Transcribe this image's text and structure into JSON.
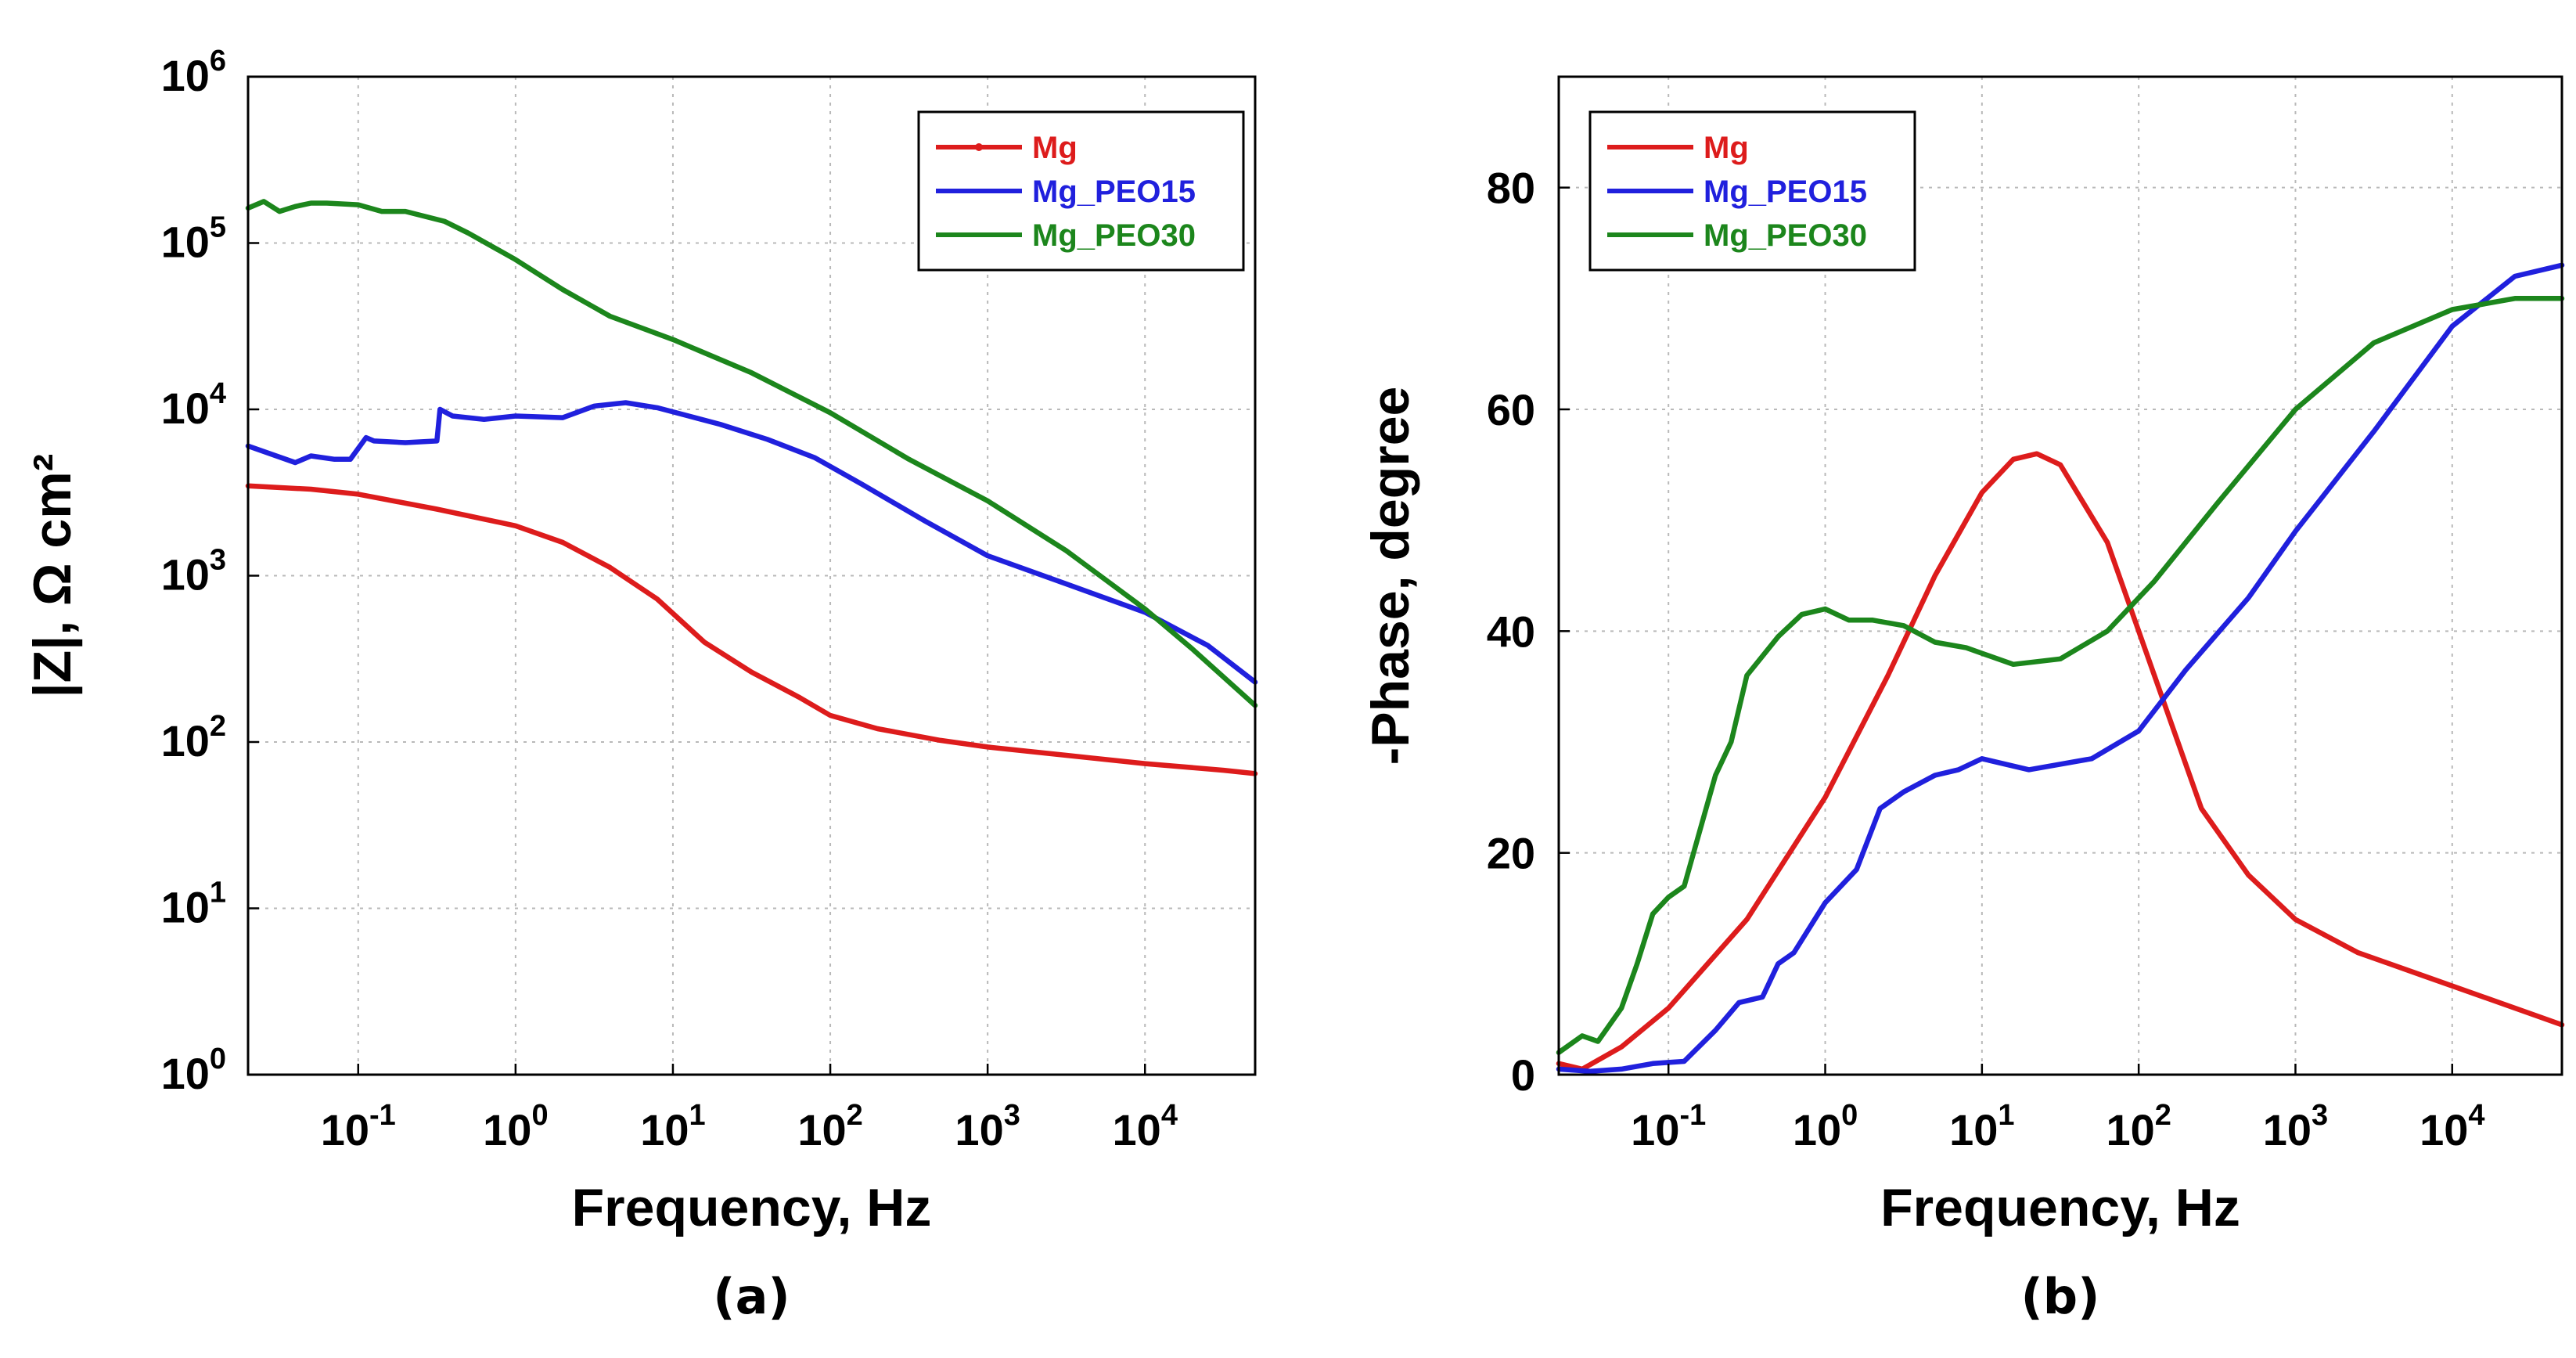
{
  "chart_data": [
    {
      "type": "line",
      "panel_label": "(a)",
      "xlabel": "Frequency, Hz",
      "ylabel": "|Z|, Ω cm²",
      "xscale": "log",
      "yscale": "log",
      "xlim_log10": [
        -1.7,
        4.7
      ],
      "ylim_log10": [
        0,
        6
      ],
      "x_ticks": [
        {
          "mant": "10",
          "exp": "-1",
          "value": -1
        },
        {
          "mant": "10",
          "exp": "0",
          "value": 0
        },
        {
          "mant": "10",
          "exp": "1",
          "value": 1
        },
        {
          "mant": "10",
          "exp": "2",
          "value": 2
        },
        {
          "mant": "10",
          "exp": "3",
          "value": 3
        },
        {
          "mant": "10",
          "exp": "4",
          "value": 4
        }
      ],
      "y_ticks": [
        {
          "mant": "10",
          "exp": "0",
          "value": 0
        },
        {
          "mant": "10",
          "exp": "1",
          "value": 1
        },
        {
          "mant": "10",
          "exp": "2",
          "value": 2
        },
        {
          "mant": "10",
          "exp": "3",
          "value": 3
        },
        {
          "mant": "10",
          "exp": "4",
          "value": 4
        },
        {
          "mant": "10",
          "exp": "5",
          "value": 5
        },
        {
          "mant": "10",
          "exp": "6",
          "value": 6
        }
      ],
      "legend_position": "top-right",
      "series": [
        {
          "name": "Mg",
          "color": "#dd1c1c",
          "marker": "dot",
          "log10x": [
            -1.7,
            -1.3,
            -1.0,
            -0.5,
            0.0,
            0.3,
            0.6,
            0.9,
            1.2,
            1.5,
            1.8,
            2.0,
            2.3,
            2.7,
            3.0,
            3.5,
            4.0,
            4.5,
            4.7
          ],
          "log10y": [
            3.54,
            3.52,
            3.49,
            3.4,
            3.3,
            3.2,
            3.05,
            2.86,
            2.6,
            2.42,
            2.27,
            2.16,
            2.08,
            2.01,
            1.97,
            1.92,
            1.87,
            1.83,
            1.81
          ]
        },
        {
          "name": "Mg_PEO15",
          "color": "#2020dd",
          "log10x": [
            -1.7,
            -1.4,
            -1.3,
            -1.15,
            -1.05,
            -0.95,
            -0.9,
            -0.7,
            -0.5,
            -0.48,
            -0.4,
            -0.2,
            0.0,
            0.3,
            0.5,
            0.7,
            0.9,
            1.1,
            1.3,
            1.6,
            1.9,
            2.2,
            2.6,
            3.0,
            3.5,
            4.0,
            4.4,
            4.7
          ],
          "log10y": [
            3.78,
            3.68,
            3.72,
            3.7,
            3.7,
            3.83,
            3.81,
            3.8,
            3.81,
            4.0,
            3.96,
            3.94,
            3.96,
            3.95,
            4.02,
            4.04,
            4.01,
            3.96,
            3.91,
            3.82,
            3.71,
            3.55,
            3.33,
            3.12,
            2.95,
            2.78,
            2.58,
            2.36
          ]
        },
        {
          "name": "Mg_PEO30",
          "color": "#1c861c",
          "log10x": [
            -1.7,
            -1.6,
            -1.5,
            -1.4,
            -1.3,
            -1.2,
            -1.0,
            -0.85,
            -0.7,
            -0.45,
            -0.3,
            0.0,
            0.3,
            0.6,
            1.0,
            1.5,
            2.0,
            2.5,
            3.0,
            3.5,
            4.0,
            4.3,
            4.7
          ],
          "log10y": [
            5.21,
            5.25,
            5.19,
            5.22,
            5.24,
            5.24,
            5.23,
            5.19,
            5.19,
            5.13,
            5.06,
            4.9,
            4.72,
            4.56,
            4.42,
            4.22,
            3.98,
            3.7,
            3.45,
            3.15,
            2.8,
            2.56,
            2.22
          ]
        }
      ]
    },
    {
      "type": "line",
      "panel_label": "(b)",
      "xlabel": "Frequency, Hz",
      "ylabel": "-Phase, degree",
      "xscale": "log",
      "yscale": "linear",
      "xlim_log10": [
        -1.7,
        4.7
      ],
      "ylim": [
        0,
        90
      ],
      "x_ticks": [
        {
          "mant": "10",
          "exp": "-1",
          "value": -1
        },
        {
          "mant": "10",
          "exp": "0",
          "value": 0
        },
        {
          "mant": "10",
          "exp": "1",
          "value": 1
        },
        {
          "mant": "10",
          "exp": "2",
          "value": 2
        },
        {
          "mant": "10",
          "exp": "3",
          "value": 3
        },
        {
          "mant": "10",
          "exp": "4",
          "value": 4
        }
      ],
      "y_ticks": [
        {
          "label": "0",
          "value": 0
        },
        {
          "label": "20",
          "value": 20
        },
        {
          "label": "40",
          "value": 40
        },
        {
          "label": "60",
          "value": 60
        },
        {
          "label": "80",
          "value": 80
        }
      ],
      "legend_position": "top-left",
      "series": [
        {
          "name": "Mg",
          "color": "#dd1c1c",
          "log10x": [
            -1.7,
            -1.55,
            -1.3,
            -1.0,
            -0.5,
            0.0,
            0.4,
            0.7,
            1.0,
            1.2,
            1.35,
            1.5,
            1.8,
            2.1,
            2.4,
            2.7,
            3.0,
            3.4,
            3.8,
            4.2,
            4.5,
            4.7
          ],
          "y": [
            1.0,
            0.5,
            2.5,
            6.0,
            14.0,
            25.0,
            36.0,
            45.0,
            52.5,
            55.5,
            56.0,
            55.0,
            48.0,
            36.0,
            24.0,
            18.0,
            14.0,
            11.0,
            9.0,
            7.0,
            5.5,
            4.5
          ]
        },
        {
          "name": "Mg_PEO15",
          "color": "#2020dd",
          "log10x": [
            -1.7,
            -1.5,
            -1.3,
            -1.1,
            -0.9,
            -0.7,
            -0.55,
            -0.4,
            -0.3,
            -0.2,
            0.0,
            0.2,
            0.35,
            0.5,
            0.7,
            0.85,
            1.0,
            1.3,
            1.7,
            2.0,
            2.3,
            2.7,
            3.0,
            3.5,
            4.0,
            4.4,
            4.7
          ],
          "y": [
            0.5,
            0.3,
            0.5,
            1.0,
            1.2,
            4.0,
            6.5,
            7.0,
            10.0,
            11.0,
            15.5,
            18.5,
            24.0,
            25.5,
            27.0,
            27.5,
            28.5,
            27.5,
            28.5,
            31.0,
            36.5,
            43.0,
            49.0,
            58.0,
            67.5,
            72.0,
            73.0
          ]
        },
        {
          "name": "Mg_PEO30",
          "color": "#1c861c",
          "log10x": [
            -1.7,
            -1.55,
            -1.45,
            -1.3,
            -1.2,
            -1.1,
            -1.0,
            -0.9,
            -0.8,
            -0.7,
            -0.6,
            -0.5,
            -0.3,
            -0.15,
            0.0,
            0.15,
            0.3,
            0.5,
            0.7,
            0.9,
            1.0,
            1.2,
            1.5,
            1.8,
            2.1,
            2.5,
            3.0,
            3.5,
            4.0,
            4.4,
            4.7
          ],
          "y": [
            2.0,
            3.5,
            3.0,
            6.0,
            10.0,
            14.5,
            16.0,
            17.0,
            22.0,
            27.0,
            30.0,
            36.0,
            39.5,
            41.5,
            42.0,
            41.0,
            41.0,
            40.5,
            39.0,
            38.5,
            38.0,
            37.0,
            37.5,
            40.0,
            44.5,
            51.5,
            60.0,
            66.0,
            69.0,
            70.0,
            70.0
          ]
        }
      ]
    }
  ]
}
